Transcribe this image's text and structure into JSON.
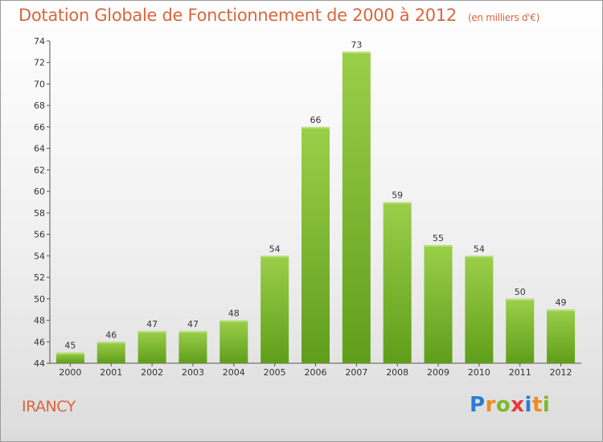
{
  "title": "Dotation Globale de Fonctionnement de 2000 à 2012",
  "subtitle": "(en milliers d'€)",
  "place": "IRANCY",
  "logo": {
    "text": "Proxiti",
    "letters": [
      {
        "ch": "P",
        "color": "#2a7ed0"
      },
      {
        "ch": "r",
        "color": "#f28c1c"
      },
      {
        "ch": "o",
        "color": "#7cb82f"
      },
      {
        "ch": "x",
        "color": "#e33b3b"
      },
      {
        "ch": "i",
        "color": "#2a7ed0"
      },
      {
        "ch": "t",
        "color": "#f28c1c"
      },
      {
        "ch": "i",
        "color": "#7cb82f"
      }
    ]
  },
  "colors": {
    "title": "#d9663e",
    "bar_light": "#9bcf4a",
    "bar_dark": "#5f9e1a"
  },
  "chart_data": {
    "type": "bar",
    "title": "Dotation Globale de Fonctionnement de 2000 à 2012",
    "subtitle": "(en milliers d'€)",
    "categories": [
      "2000",
      "2001",
      "2002",
      "2003",
      "2004",
      "2005",
      "2006",
      "2007",
      "2008",
      "2009",
      "2010",
      "2011",
      "2012"
    ],
    "values": [
      45,
      46,
      47,
      47,
      48,
      54,
      66,
      73,
      59,
      55,
      54,
      50,
      49
    ],
    "ylim": [
      44,
      74
    ],
    "yticks": [
      44,
      46,
      48,
      50,
      52,
      54,
      56,
      58,
      60,
      62,
      64,
      66,
      68,
      70,
      72,
      74
    ],
    "grid": false,
    "legend": "none"
  }
}
